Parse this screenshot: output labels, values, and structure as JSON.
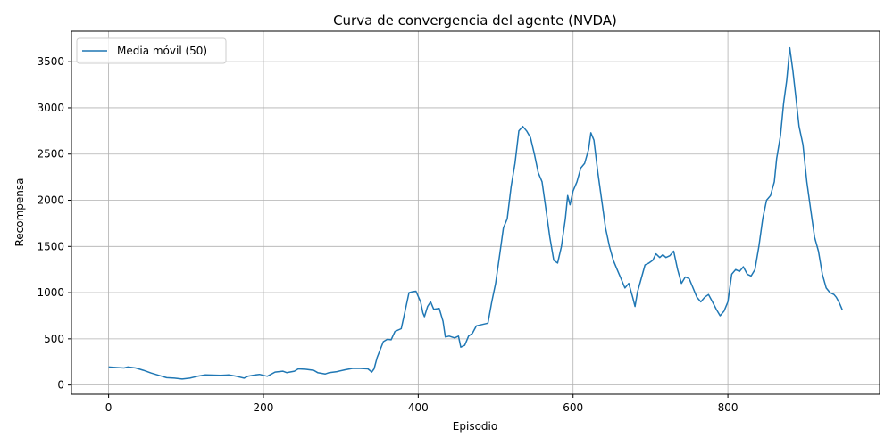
{
  "chart_data": {
    "type": "line",
    "title": "Curva de convergencia del agente (NVDA)",
    "xlabel": "Episodio",
    "ylabel": "Recompensa",
    "xlim": [
      -48,
      996
    ],
    "ylim": [
      -100,
      3830
    ],
    "xticks": [
      0,
      200,
      400,
      600,
      800
    ],
    "yticks": [
      0,
      500,
      1000,
      1500,
      2000,
      2500,
      3000,
      3500
    ],
    "grid": true,
    "legend_position": "top-left",
    "series": [
      {
        "name": "Media móvil (50)",
        "color": "#1f77b4",
        "points": [
          [
            0,
            195
          ],
          [
            10,
            190
          ],
          [
            20,
            185
          ],
          [
            25,
            195
          ],
          [
            35,
            185
          ],
          [
            45,
            160
          ],
          [
            55,
            130
          ],
          [
            65,
            105
          ],
          [
            75,
            80
          ],
          [
            85,
            75
          ],
          [
            95,
            65
          ],
          [
            105,
            75
          ],
          [
            115,
            95
          ],
          [
            125,
            110
          ],
          [
            135,
            108
          ],
          [
            145,
            105
          ],
          [
            155,
            110
          ],
          [
            165,
            95
          ],
          [
            175,
            75
          ],
          [
            180,
            95
          ],
          [
            190,
            110
          ],
          [
            195,
            115
          ],
          [
            205,
            95
          ],
          [
            215,
            140
          ],
          [
            225,
            150
          ],
          [
            230,
            135
          ],
          [
            240,
            150
          ],
          [
            245,
            175
          ],
          [
            255,
            170
          ],
          [
            265,
            160
          ],
          [
            270,
            135
          ],
          [
            280,
            120
          ],
          [
            285,
            135
          ],
          [
            295,
            145
          ],
          [
            305,
            165
          ],
          [
            315,
            180
          ],
          [
            325,
            180
          ],
          [
            335,
            175
          ],
          [
            340,
            140
          ],
          [
            343,
            175
          ],
          [
            347,
            300
          ],
          [
            355,
            470
          ],
          [
            360,
            495
          ],
          [
            365,
            490
          ],
          [
            370,
            580
          ],
          [
            378,
            610
          ],
          [
            383,
            800
          ],
          [
            388,
            1000
          ],
          [
            393,
            1010
          ],
          [
            397,
            1015
          ],
          [
            403,
            900
          ],
          [
            406,
            780
          ],
          [
            408,
            740
          ],
          [
            412,
            850
          ],
          [
            416,
            900
          ],
          [
            420,
            820
          ],
          [
            427,
            830
          ],
          [
            432,
            690
          ],
          [
            435,
            520
          ],
          [
            440,
            530
          ],
          [
            447,
            510
          ],
          [
            452,
            530
          ],
          [
            455,
            410
          ],
          [
            460,
            430
          ],
          [
            465,
            530
          ],
          [
            470,
            560
          ],
          [
            475,
            640
          ],
          [
            480,
            650
          ],
          [
            485,
            660
          ],
          [
            490,
            670
          ],
          [
            495,
            900
          ],
          [
            500,
            1100
          ],
          [
            505,
            1400
          ],
          [
            510,
            1700
          ],
          [
            515,
            1800
          ],
          [
            520,
            2150
          ],
          [
            525,
            2400
          ],
          [
            530,
            2750
          ],
          [
            535,
            2800
          ],
          [
            540,
            2750
          ],
          [
            545,
            2680
          ],
          [
            550,
            2500
          ],
          [
            555,
            2300
          ],
          [
            560,
            2200
          ],
          [
            565,
            1900
          ],
          [
            570,
            1600
          ],
          [
            575,
            1350
          ],
          [
            580,
            1320
          ],
          [
            585,
            1500
          ],
          [
            590,
            1800
          ],
          [
            593,
            2050
          ],
          [
            596,
            1950
          ],
          [
            600,
            2100
          ],
          [
            605,
            2200
          ],
          [
            610,
            2350
          ],
          [
            615,
            2400
          ],
          [
            620,
            2550
          ],
          [
            623,
            2730
          ],
          [
            627,
            2650
          ],
          [
            632,
            2300
          ],
          [
            637,
            2000
          ],
          [
            642,
            1700
          ],
          [
            647,
            1500
          ],
          [
            652,
            1350
          ],
          [
            657,
            1250
          ],
          [
            662,
            1150
          ],
          [
            667,
            1050
          ],
          [
            672,
            1100
          ],
          [
            677,
            950
          ],
          [
            680,
            850
          ],
          [
            683,
            1000
          ],
          [
            688,
            1150
          ],
          [
            693,
            1300
          ],
          [
            698,
            1320
          ],
          [
            703,
            1350
          ],
          [
            707,
            1420
          ],
          [
            712,
            1380
          ],
          [
            716,
            1410
          ],
          [
            720,
            1380
          ],
          [
            725,
            1400
          ],
          [
            730,
            1450
          ],
          [
            735,
            1250
          ],
          [
            740,
            1100
          ],
          [
            745,
            1170
          ],
          [
            750,
            1150
          ],
          [
            755,
            1050
          ],
          [
            760,
            950
          ],
          [
            765,
            900
          ],
          [
            770,
            950
          ],
          [
            775,
            980
          ],
          [
            780,
            900
          ],
          [
            785,
            820
          ],
          [
            790,
            750
          ],
          [
            795,
            800
          ],
          [
            800,
            900
          ],
          [
            805,
            1200
          ],
          [
            810,
            1250
          ],
          [
            815,
            1230
          ],
          [
            820,
            1280
          ],
          [
            825,
            1200
          ],
          [
            830,
            1180
          ],
          [
            835,
            1250
          ],
          [
            840,
            1500
          ],
          [
            845,
            1800
          ],
          [
            850,
            2000
          ],
          [
            855,
            2050
          ],
          [
            860,
            2200
          ],
          [
            863,
            2450
          ],
          [
            868,
            2700
          ],
          [
            872,
            3050
          ],
          [
            876,
            3300
          ],
          [
            880,
            3650
          ],
          [
            884,
            3400
          ],
          [
            888,
            3100
          ],
          [
            892,
            2800
          ],
          [
            897,
            2600
          ],
          [
            902,
            2200
          ],
          [
            907,
            1900
          ],
          [
            912,
            1600
          ],
          [
            917,
            1450
          ],
          [
            922,
            1200
          ],
          [
            927,
            1050
          ],
          [
            932,
            1000
          ],
          [
            937,
            980
          ],
          [
            940,
            950
          ],
          [
            944,
            890
          ],
          [
            948,
            810
          ]
        ]
      }
    ]
  }
}
